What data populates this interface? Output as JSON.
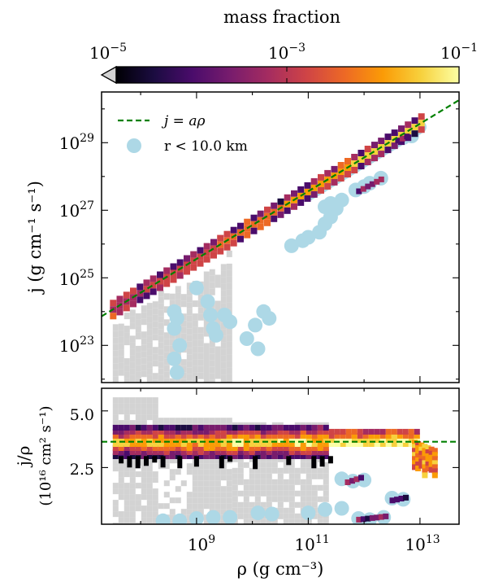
{
  "colors": {
    "cmap": [
      "#000004",
      "#1b0c41",
      "#4a0c6b",
      "#781c6d",
      "#a52c60",
      "#cf4446",
      "#ed6925",
      "#fb9b06",
      "#f7d13d",
      "#fcffa4"
    ],
    "grey": "#d3d3d3",
    "scatter": "#add8e6",
    "fit_line": "#008000"
  },
  "colorbar": {
    "label": "mass fraction",
    "scale": "log",
    "range": [
      1e-05,
      0.1
    ],
    "extend": "min",
    "ticks": [
      {
        "base": "10",
        "exp": "−5",
        "value": 1e-05
      },
      {
        "base": "10",
        "exp": "−3",
        "value": 0.001
      },
      {
        "base": "10",
        "exp": "−1",
        "value": 0.1
      }
    ]
  },
  "chart_data": [
    {
      "type": "heatmap",
      "panel": "top",
      "ylabel": "j (g cm⁻¹ s⁻¹)",
      "xscale": "log",
      "yscale": "log",
      "xlim_log10": [
        7.3,
        13.7
      ],
      "ylim_log10": [
        21.9,
        30.5
      ],
      "yticks": [
        {
          "base": "10",
          "exp": "23",
          "value": 23
        },
        {
          "base": "10",
          "exp": "25",
          "value": 25
        },
        {
          "base": "10",
          "exp": "27",
          "value": 27
        },
        {
          "base": "10",
          "exp": "29",
          "value": 29
        }
      ],
      "legend": {
        "placement": "upper left",
        "entries": [
          {
            "label": "j = aρ",
            "kind": "dashed-line"
          },
          {
            "label": "r < 10.0 km",
            "kind": "marker"
          }
        ]
      },
      "fit_line": {
        "slope": 1.0,
        "intercept_log10": 16.56
      },
      "ridge_cells": {
        "x_start": 7.5,
        "x_end": 13.1,
        "step": 0.12
      },
      "blobs": [
        {
          "x": [
            11.9,
            12.3
          ],
          "y": [
            27.55,
            27.9
          ],
          "series": "heat"
        },
        {
          "x": [
            12.6,
            12.8
          ],
          "y": [
            29.05,
            29.2
          ],
          "series": "heat"
        }
      ],
      "grey_region": {
        "x": [
          7.5,
          9.6
        ],
        "y_bottom": 21.9
      },
      "scatter_points": [
        [
          8.6,
          23.5
        ],
        [
          8.7,
          23.0
        ],
        [
          8.6,
          22.6
        ],
        [
          8.65,
          22.2
        ],
        [
          8.6,
          24.0
        ],
        [
          8.65,
          23.8
        ],
        [
          9.0,
          24.7
        ],
        [
          9.2,
          24.3
        ],
        [
          9.25,
          23.9
        ],
        [
          9.3,
          23.5
        ],
        [
          9.35,
          23.3
        ],
        [
          9.5,
          23.9
        ],
        [
          9.6,
          23.7
        ],
        [
          9.9,
          23.2
        ],
        [
          10.1,
          22.9
        ],
        [
          10.05,
          23.6
        ],
        [
          10.2,
          24.0
        ],
        [
          10.3,
          23.8
        ],
        [
          10.7,
          25.95
        ],
        [
          10.9,
          26.1
        ],
        [
          11.0,
          26.2
        ],
        [
          11.2,
          26.35
        ],
        [
          11.3,
          26.6
        ],
        [
          11.4,
          26.8
        ],
        [
          11.5,
          27.05
        ],
        [
          11.3,
          27.1
        ],
        [
          11.4,
          27.2
        ],
        [
          11.6,
          27.3
        ],
        [
          11.85,
          27.6
        ],
        [
          12.0,
          27.7
        ],
        [
          12.1,
          27.8
        ],
        [
          12.3,
          27.95
        ],
        [
          12.55,
          29.1
        ],
        [
          12.7,
          29.15
        ],
        [
          12.85,
          29.2
        ]
      ]
    },
    {
      "type": "heatmap",
      "panel": "bottom",
      "xlabel": "ρ (g cm⁻³)",
      "ylabel_line1": "j/ρ",
      "ylabel_line2": "(10¹⁶ cm² s⁻¹)",
      "xscale": "log",
      "xlim_log10": [
        7.3,
        13.7
      ],
      "ylim": [
        0,
        6.0
      ],
      "fit_value": 3.64,
      "xticks": [
        {
          "base": "10",
          "exp": "9",
          "value": 9
        },
        {
          "base": "10",
          "exp": "11",
          "value": 11
        },
        {
          "base": "10",
          "exp": "13",
          "value": 13
        }
      ],
      "yticks": [
        {
          "label": "2.5",
          "value": 2.5
        },
        {
          "label": "5.0",
          "value": 5.0
        }
      ],
      "band": {
        "x": [
          7.5,
          12.9
        ],
        "y": [
          3.0,
          4.3
        ]
      },
      "tail": {
        "x": [
          12.9,
          13.3
        ],
        "y": [
          2.3,
          3.6
        ]
      },
      "blobs": [
        {
          "x": [
            11.7,
            12.0
          ],
          "y": [
            1.85,
            2.1
          ]
        },
        {
          "x": [
            12.5,
            12.8
          ],
          "y": [
            1.05,
            1.2
          ]
        },
        {
          "x": [
            11.9,
            12.4
          ],
          "y": [
            0.2,
            0.35
          ]
        }
      ],
      "scatter_points": [
        [
          8.4,
          0.15
        ],
        [
          8.7,
          0.15
        ],
        [
          9.0,
          0.25
        ],
        [
          9.3,
          0.3
        ],
        [
          9.6,
          0.3
        ],
        [
          10.1,
          0.5
        ],
        [
          10.35,
          0.45
        ],
        [
          11.0,
          0.5
        ],
        [
          11.3,
          0.65
        ],
        [
          11.6,
          0.7
        ],
        [
          11.6,
          2.0
        ],
        [
          11.8,
          1.9
        ],
        [
          12.0,
          1.95
        ],
        [
          12.5,
          1.15
        ],
        [
          12.7,
          1.1
        ],
        [
          11.9,
          0.25
        ],
        [
          12.1,
          0.2
        ],
        [
          12.35,
          0.3
        ]
      ]
    }
  ]
}
